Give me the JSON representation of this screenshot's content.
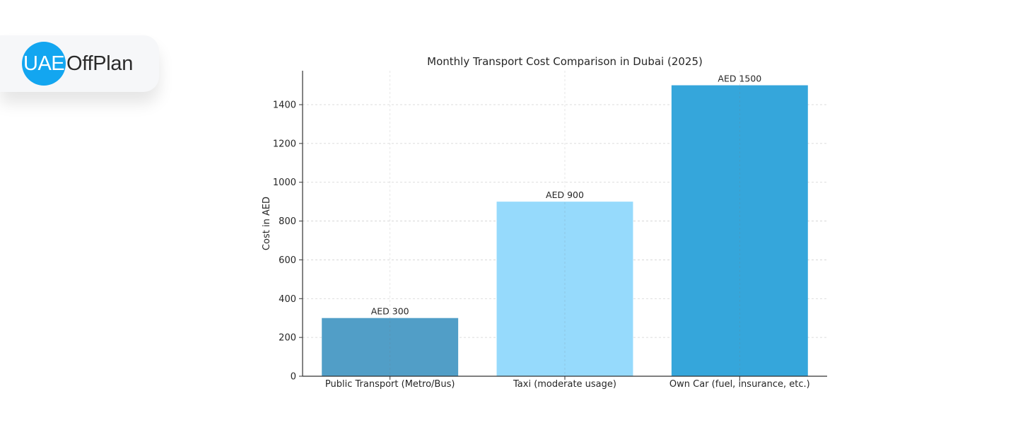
{
  "logo": {
    "part1": "UAE",
    "part2": "OffPlan"
  },
  "chart_data": {
    "type": "bar",
    "title": "Monthly Transport Cost Comparison in Dubai (2025)",
    "xlabel": "",
    "ylabel": "Cost in AED",
    "categories": [
      "Public Transport (Metro/Bus)",
      "Taxi (moderate usage)",
      "Own Car (fuel, insurance, etc.)"
    ],
    "values": [
      300,
      900,
      1500
    ],
    "data_labels": [
      "AED 300",
      "AED 900",
      "AED 1500"
    ],
    "colors": [
      "#519ec7",
      "#96dafc",
      "#35a6db"
    ],
    "ylim": [
      0,
      1575
    ],
    "yticks": [
      0,
      200,
      400,
      600,
      800,
      1000,
      1200,
      1400
    ],
    "grid": true,
    "grid_style": "dashed"
  }
}
